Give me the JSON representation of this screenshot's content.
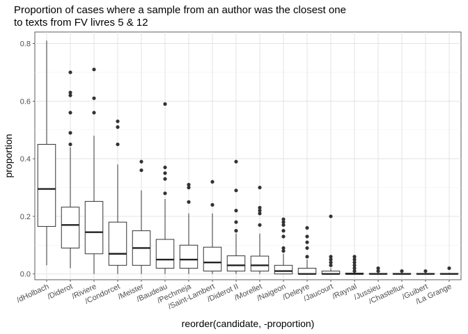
{
  "chart_data": {
    "type": "boxplot",
    "title": "Proportion of cases where a sample from an author was the closest one\nto texts from FV livres 5 & 12",
    "xlabel": "reorder(candidate, -proportion)",
    "ylabel": "proportion",
    "ylim": [
      -0.02,
      0.84
    ],
    "yticks": [
      0.0,
      0.2,
      0.4,
      0.6,
      0.8
    ],
    "ytick_labels": [
      "0.0",
      "0.2",
      "0.4",
      "0.6",
      "0.8"
    ],
    "grid": true,
    "categories": [
      "/dHolbach",
      "/Diderot",
      "/Riviere",
      "/Condorcet",
      "/Meister",
      "/Baudeau",
      "/Pechmeja",
      "/Saint-Lambert",
      "/Diderot II",
      "/Morellet",
      "/Naigeon",
      "/Deleyre",
      "/Jaucourt",
      "/Raynal",
      "/Jussieu",
      "/Chastellux",
      "/Guibert",
      "/La Grange"
    ],
    "boxes": [
      {
        "min": 0.03,
        "q1": 0.165,
        "median": 0.295,
        "q3": 0.45,
        "max": 0.81,
        "outliers": []
      },
      {
        "min": 0.02,
        "q1": 0.09,
        "median": 0.17,
        "q3": 0.232,
        "max": 0.44,
        "outliers": [
          0.45,
          0.49,
          0.56,
          0.62,
          0.63,
          0.7
        ]
      },
      {
        "min": 0.0,
        "q1": 0.07,
        "median": 0.145,
        "q3": 0.252,
        "max": 0.48,
        "outliers": [
          0.56,
          0.61,
          0.71
        ]
      },
      {
        "min": 0.0,
        "q1": 0.03,
        "median": 0.07,
        "q3": 0.18,
        "max": 0.38,
        "outliers": [
          0.45,
          0.51,
          0.53
        ]
      },
      {
        "min": 0.0,
        "q1": 0.03,
        "median": 0.09,
        "q3": 0.15,
        "max": 0.29,
        "outliers": [
          0.36,
          0.39
        ]
      },
      {
        "min": 0.0,
        "q1": 0.02,
        "median": 0.05,
        "q3": 0.12,
        "max": 0.26,
        "outliers": [
          0.28,
          0.33,
          0.35,
          0.37,
          0.59
        ]
      },
      {
        "min": 0.0,
        "q1": 0.02,
        "median": 0.05,
        "q3": 0.1,
        "max": 0.21,
        "outliers": [
          0.25,
          0.3,
          0.31
        ]
      },
      {
        "min": 0.0,
        "q1": 0.01,
        "median": 0.04,
        "q3": 0.093,
        "max": 0.21,
        "outliers": [
          0.24,
          0.32
        ]
      },
      {
        "min": 0.0,
        "q1": 0.01,
        "median": 0.03,
        "q3": 0.063,
        "max": 0.14,
        "outliers": [
          0.15,
          0.18,
          0.22,
          0.29,
          0.39
        ]
      },
      {
        "min": 0.0,
        "q1": 0.01,
        "median": 0.03,
        "q3": 0.062,
        "max": 0.14,
        "outliers": [
          0.17,
          0.21,
          0.22,
          0.23,
          0.3
        ]
      },
      {
        "min": 0.0,
        "q1": 0.0,
        "median": 0.01,
        "q3": 0.03,
        "max": 0.07,
        "outliers": [
          0.08,
          0.09,
          0.13,
          0.15,
          0.17,
          0.18,
          0.19
        ]
      },
      {
        "min": 0.0,
        "q1": 0.0,
        "median": 0.0,
        "q3": 0.02,
        "max": 0.05,
        "outliers": [
          0.06,
          0.09,
          0.11,
          0.13,
          0.16
        ]
      },
      {
        "min": 0.0,
        "q1": 0.0,
        "median": 0.0,
        "q3": 0.01,
        "max": 0.02,
        "outliers": [
          0.03,
          0.04,
          0.05,
          0.06,
          0.2
        ]
      },
      {
        "min": 0.0,
        "q1": 0.0,
        "median": 0.0,
        "q3": 0.003,
        "max": 0.005,
        "outliers": [
          0.01,
          0.02,
          0.03,
          0.04,
          0.05,
          0.06
        ]
      },
      {
        "min": 0.0,
        "q1": 0.0,
        "median": 0.0,
        "q3": 0.002,
        "max": 0.004,
        "outliers": [
          0.01,
          0.02
        ]
      },
      {
        "min": 0.0,
        "q1": 0.0,
        "median": 0.0,
        "q3": 0.002,
        "max": 0.004,
        "outliers": [
          0.01
        ]
      },
      {
        "min": 0.0,
        "q1": 0.0,
        "median": 0.0,
        "q3": 0.002,
        "max": 0.004,
        "outliers": [
          0.01
        ]
      },
      {
        "min": 0.0,
        "q1": 0.0,
        "median": 0.0,
        "q3": 0.002,
        "max": 0.004,
        "outliers": [
          0.02
        ]
      }
    ]
  }
}
